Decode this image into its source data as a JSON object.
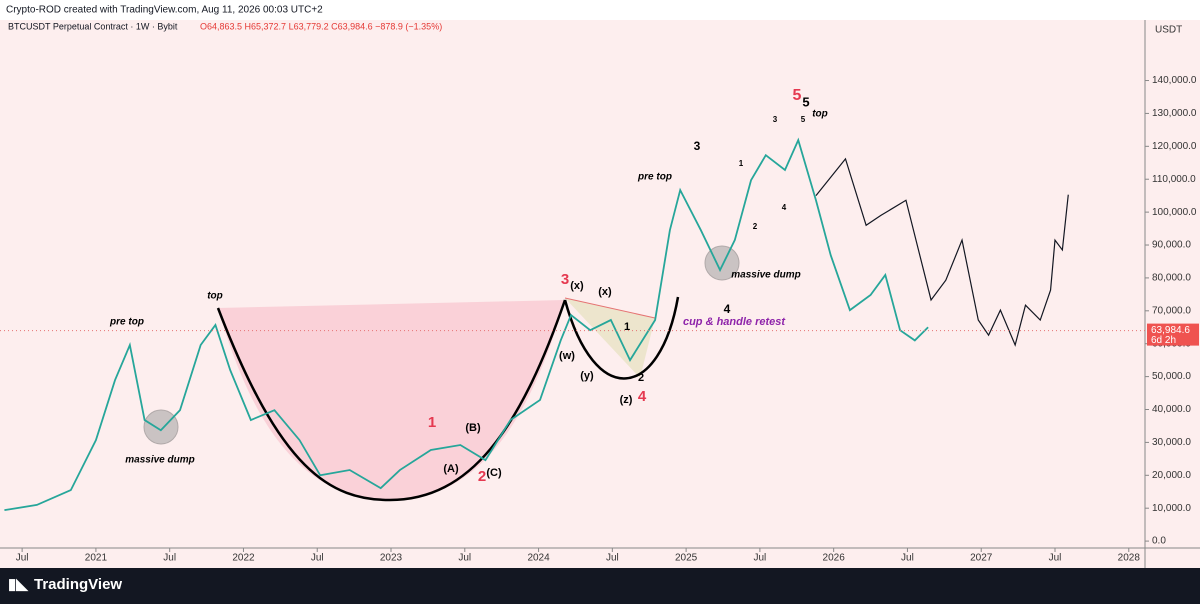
{
  "chart_data": {
    "type": "line",
    "header": "Crypto-ROD created with TradingView.com, Aug 11, 2026 00:03 UTC+2",
    "title": "BTCUSDT Perpetual Contract · 1W · Bybit",
    "ohlc": "O64,863.5 H65,372.7 L63,779.2 C63,984.6 −878.9 (−1.35%)",
    "currency": "USDT",
    "brand": "TradingView",
    "last_price": {
      "value": 63984.6,
      "label": "63,984.6"
    },
    "countdown": "6d 2h",
    "xlim": [
      2020.35,
      2028.11
    ],
    "xticks": [
      {
        "value": 2020.5,
        "label": "Jul"
      },
      {
        "value": 2021,
        "label": "2021"
      },
      {
        "value": 2021.5,
        "label": "Jul"
      },
      {
        "value": 2022,
        "label": "2022"
      },
      {
        "value": 2022.5,
        "label": "Jul"
      },
      {
        "value": 2023,
        "label": "2023"
      },
      {
        "value": 2023.5,
        "label": "Jul"
      },
      {
        "value": 2024,
        "label": "2024"
      },
      {
        "value": 2024.5,
        "label": "Jul"
      },
      {
        "value": 2025,
        "label": "2025"
      },
      {
        "value": 2025.5,
        "label": "Jul"
      },
      {
        "value": 2026,
        "label": "2026"
      },
      {
        "value": 2026.5,
        "label": "Jul"
      },
      {
        "value": 2027,
        "label": "2027"
      },
      {
        "value": 2027.5,
        "label": "Jul"
      },
      {
        "value": 2028,
        "label": "2028"
      }
    ],
    "ylim": [
      -2100,
      158400
    ],
    "yticks": [
      {
        "value": 0,
        "label": "0.0"
      },
      {
        "value": 10000,
        "label": "10,000.0"
      },
      {
        "value": 20000,
        "label": "20,000.0"
      },
      {
        "value": 30000,
        "label": "30,000.0"
      },
      {
        "value": 40000,
        "label": "40,000.0"
      },
      {
        "value": 50000,
        "label": "50,000.0"
      },
      {
        "value": 60000,
        "label": "60,000.0"
      },
      {
        "value": 70000,
        "label": "70,000.0"
      },
      {
        "value": 80000,
        "label": "80,000.0"
      },
      {
        "value": 90000,
        "label": "90,000.0"
      },
      {
        "value": 100000,
        "label": "100,000.0"
      },
      {
        "value": 110000,
        "label": "110,000.0"
      },
      {
        "value": 120000,
        "label": "120,000.0"
      },
      {
        "value": 130000,
        "label": "130,000.0"
      },
      {
        "value": 140000,
        "label": "140,000.0"
      }
    ],
    "series": [
      {
        "color": "#26a69a",
        "x": [
          2020.38,
          2020.6,
          2020.83,
          2021.0,
          2021.13,
          2021.23,
          2021.33,
          2021.44,
          2021.57,
          2021.71,
          2021.81,
          2021.91,
          2022.05,
          2022.21,
          2022.38,
          2022.52,
          2022.72,
          2022.93,
          2023.06,
          2023.27,
          2023.47,
          2023.64,
          2023.81,
          2024.01,
          2024.15,
          2024.22,
          2024.35,
          2024.49,
          2024.62,
          2024.79,
          2024.89,
          2024.96,
          2025.1,
          2025.23,
          2025.33,
          2025.44,
          2025.54,
          2025.67,
          2025.76,
          2025.88,
          2025.98,
          2026.11,
          2026.25,
          2026.35,
          2026.45,
          2026.55,
          2026.64
        ],
        "values": [
          9400,
          11000,
          15500,
          30700,
          49000,
          59600,
          36800,
          33700,
          39800,
          59600,
          65700,
          52000,
          36800,
          39800,
          30700,
          20000,
          21600,
          16100,
          21600,
          27700,
          29200,
          24600,
          36800,
          42900,
          61000,
          68700,
          64100,
          67200,
          55000,
          67200,
          94500,
          106700,
          94500,
          82400,
          91500,
          109700,
          117300,
          112800,
          121900,
          103600,
          86900,
          70200,
          74800,
          80900,
          64100,
          61000,
          65000
        ]
      },
      {
        "color": "#131722",
        "x": [
          2025.88,
          2026.08,
          2026.22,
          2026.32,
          2026.49,
          2026.66,
          2026.76,
          2026.87,
          2026.98,
          2027.05,
          2027.13,
          2027.23,
          2027.3,
          2027.4,
          2027.47,
          2027.5,
          2027.55,
          2027.59
        ],
        "values": [
          105000,
          116200,
          96000,
          99000,
          103600,
          73300,
          79300,
          91500,
          67200,
          62600,
          70200,
          59600,
          71700,
          67200,
          76300,
          91500,
          88500,
          105300
        ]
      }
    ],
    "annotations": [
      "pre top",
      "massive dump",
      "top",
      "1",
      "(A)",
      "(B)",
      "2",
      "(C)",
      "3",
      "(x)",
      "(w)",
      "(y)",
      "(z)",
      "4",
      "(x)",
      "1",
      "2",
      "pre top",
      "3",
      "massive dump",
      "4",
      "cup & handle retest",
      "1",
      "2",
      "4",
      "3",
      "5",
      "5",
      "5",
      "top"
    ]
  }
}
